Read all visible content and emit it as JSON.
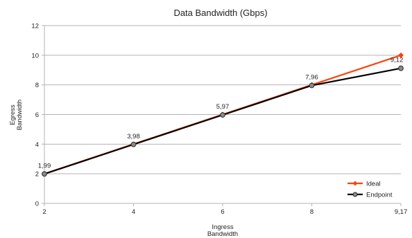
{
  "chart_data": {
    "type": "line",
    "title": "Data Bandwidth (Gbps)",
    "xlabel": [
      "Ingress",
      "Bandwidth"
    ],
    "ylabel": [
      "Egress",
      "Bandwidth"
    ],
    "categories": [
      "2",
      "4",
      "6",
      "8",
      "9,17"
    ],
    "ylim": [
      0,
      12
    ],
    "yticks": [
      0,
      2,
      4,
      6,
      8,
      10,
      12
    ],
    "grid": "horizontal",
    "legend_position": "bottom-right",
    "series": [
      {
        "name": "Ideal",
        "color": "#ff420e",
        "marker": "diamond",
        "values": [
          2,
          4,
          6,
          8,
          10
        ]
      },
      {
        "name": "Endpoint",
        "color": "#000000",
        "marker": "circle",
        "values": [
          1.99,
          3.98,
          5.97,
          7.96,
          9.12
        ]
      }
    ],
    "data_labels": [
      "1,99",
      "3,98",
      "5,97",
      "7,96",
      "9,12"
    ]
  }
}
